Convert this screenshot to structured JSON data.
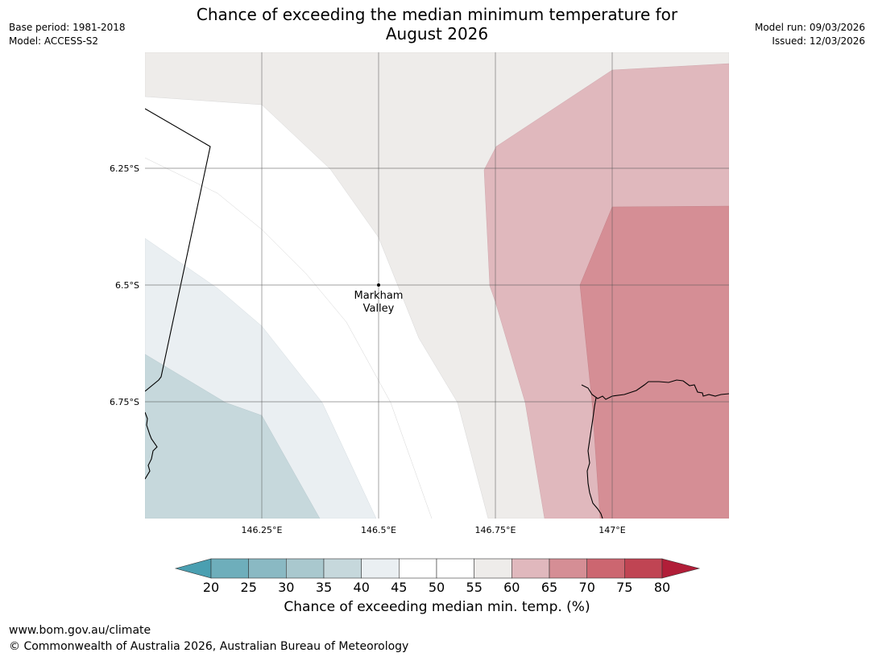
{
  "title_line1": "Chance of exceeding the median minimum temperature for",
  "title_line2": "August 2026",
  "base_period": "Base period: 1981-2018",
  "model": "Model: ACCESS-S2",
  "model_run": "Model run: 09/03/2026",
  "issued": "Issued: 12/03/2026",
  "map": {
    "lon_labels": [
      "146.25°E",
      "146.5°E",
      "146.75°E",
      "147°E"
    ],
    "lat_labels": [
      "6.25°S",
      "6.5°S",
      "6.75°S"
    ],
    "place_name_line1": "Markham",
    "place_name_line2": "Valley"
  },
  "colorbar": {
    "ticks": [
      "20",
      "25",
      "30",
      "35",
      "40",
      "45",
      "50",
      "55",
      "60",
      "65",
      "70",
      "75",
      "80"
    ],
    "colors": {
      "lt20": "#4a9fb1",
      "c20_25": "#6eaebb",
      "c25_30": "#8ab9c3",
      "c30_35": "#a9c8ce",
      "c35_40": "#c6d8dc",
      "c40_45": "#eaeff2",
      "c45_50": "#ffffff",
      "c50_55": "#ffffff",
      "c55_60": "#eeecea",
      "c60_65": "#e0b8bd",
      "c65_70": "#d58e95",
      "c70_75": "#cc6670",
      "c75_80": "#c04453",
      "gt80": "#b11e38"
    },
    "label": "Chance of exceeding median min. temp. (%)"
  },
  "footer": {
    "url": "www.bom.gov.au/climate",
    "copyright": "© Commonwealth of Australia 2026, Australian Bureau of Meteorology"
  }
}
